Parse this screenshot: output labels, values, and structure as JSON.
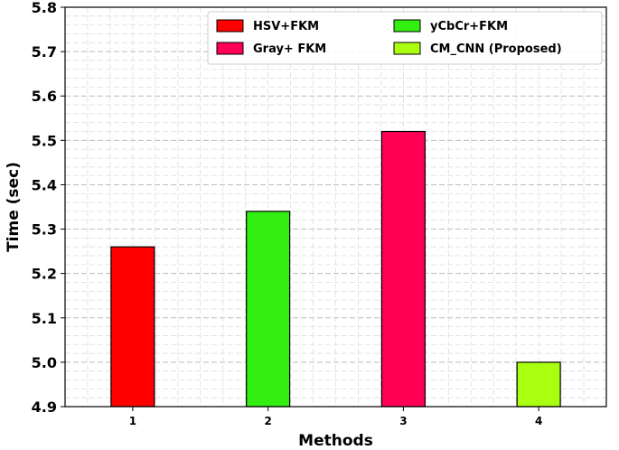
{
  "chart_data": {
    "type": "bar",
    "title": "",
    "xlabel": "Methods",
    "ylabel": "Time (sec)",
    "categories": [
      "1",
      "2",
      "3",
      "4"
    ],
    "ylim": [
      4.9,
      5.8
    ],
    "yticks": [
      "4.9",
      "5.0",
      "5.1",
      "5.2",
      "5.3",
      "5.4",
      "5.5",
      "5.6",
      "5.7",
      "5.8"
    ],
    "grid": true,
    "legend_position": "top-right",
    "series": [
      {
        "name": "HSV+FKM",
        "category": "1",
        "value": 5.26,
        "color": "#ff0000"
      },
      {
        "name": "yCbCr+FKM",
        "category": "2",
        "value": 5.34,
        "color": "#33ee11"
      },
      {
        "name": "Gray+ FKM",
        "category": "3",
        "value": 5.52,
        "color": "#ff0055"
      },
      {
        "name": "CM_CNN (Proposed)",
        "category": "4",
        "value": 5.0,
        "color": "#aaff11"
      }
    ]
  }
}
